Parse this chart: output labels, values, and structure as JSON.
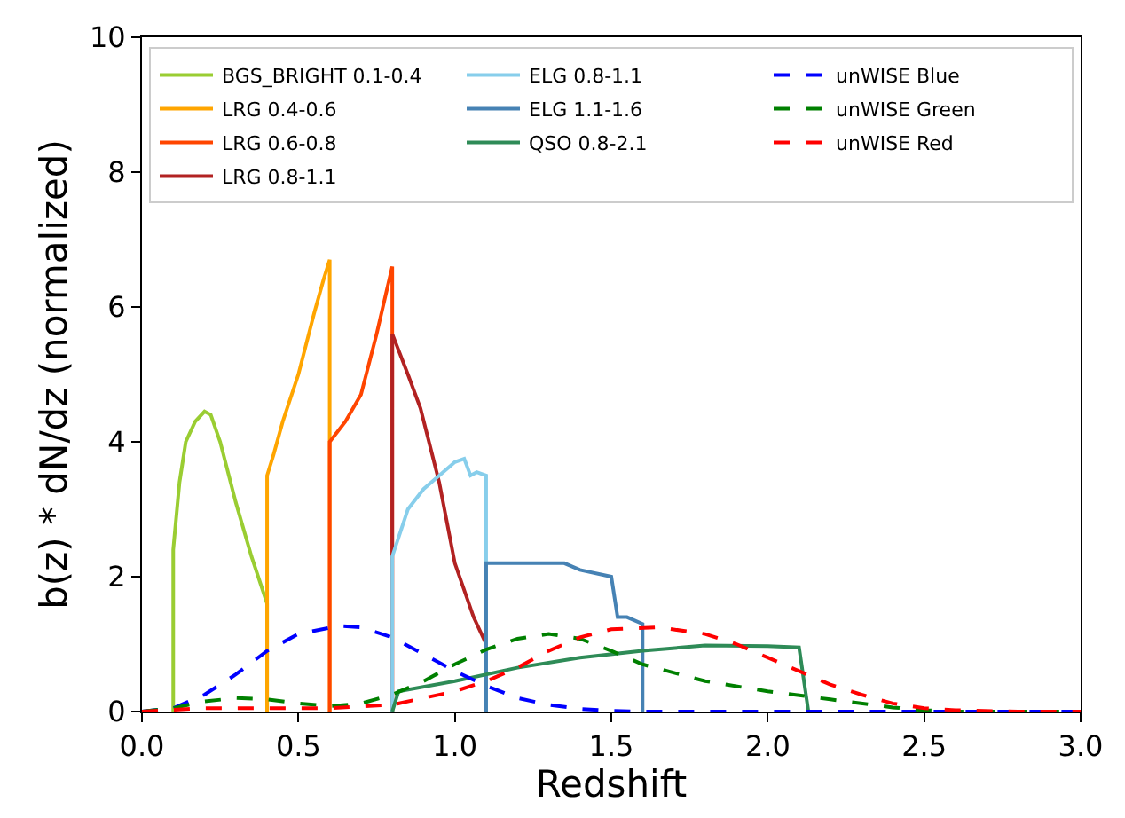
{
  "chart_data": {
    "type": "line",
    "xlabel": "Redshift",
    "ylabel": "b(z) * dN/dz (normalized)",
    "xlim": [
      0,
      3
    ],
    "ylim": [
      0,
      10
    ],
    "xticks": [
      {
        "value": 0,
        "label": "0.0"
      },
      {
        "value": 0.5,
        "label": "0.5"
      },
      {
        "value": 1,
        "label": "1.0"
      },
      {
        "value": 1.5,
        "label": "1.5"
      },
      {
        "value": 2,
        "label": "2.0"
      },
      {
        "value": 2.5,
        "label": "2.5"
      },
      {
        "value": 3,
        "label": "3.0"
      }
    ],
    "yticks": [
      0,
      2,
      4,
      6,
      8,
      10
    ],
    "legend": "top",
    "marker": "none",
    "series": [
      {
        "name": "BGS_BRIGHT 0.1-0.4",
        "color": "#9acd32",
        "line_style": "solid",
        "x": [
          0.1,
          0.1,
          0.12,
          0.14,
          0.17,
          0.2,
          0.22,
          0.25,
          0.3,
          0.35,
          0.4,
          0.4
        ],
        "values": [
          0,
          2.4,
          3.4,
          4.0,
          4.3,
          4.45,
          4.4,
          4.0,
          3.1,
          2.3,
          1.6,
          0
        ]
      },
      {
        "name": "LRG 0.4-0.6",
        "color": "#ffa500",
        "line_style": "solid",
        "x": [
          0.4,
          0.4,
          0.42,
          0.45,
          0.5,
          0.55,
          0.58,
          0.6,
          0.6
        ],
        "values": [
          0,
          3.5,
          3.8,
          4.3,
          5.0,
          5.9,
          6.4,
          6.7,
          0
        ]
      },
      {
        "name": "LRG 0.6-0.8",
        "color": "#ff4500",
        "line_style": "solid",
        "x": [
          0.6,
          0.6,
          0.65,
          0.7,
          0.75,
          0.78,
          0.8,
          0.8
        ],
        "values": [
          0,
          4.0,
          4.3,
          4.7,
          5.6,
          6.2,
          6.6,
          0
        ]
      },
      {
        "name": "LRG 0.8-1.1",
        "color": "#b22222",
        "line_style": "solid",
        "x": [
          0.8,
          0.8,
          0.85,
          0.89,
          0.95,
          1.0,
          1.06,
          1.1
        ],
        "values": [
          0,
          5.6,
          5.0,
          4.5,
          3.4,
          2.2,
          1.4,
          1.0
        ]
      },
      {
        "name": "ELG 0.8-1.1",
        "color": "#87ceeb",
        "line_style": "solid",
        "x": [
          0.8,
          0.8,
          0.85,
          0.9,
          0.95,
          1.0,
          1.03,
          1.05,
          1.07,
          1.1,
          1.1
        ],
        "values": [
          0,
          2.3,
          3.0,
          3.3,
          3.5,
          3.7,
          3.75,
          3.5,
          3.55,
          3.5,
          0
        ]
      },
      {
        "name": "ELG 1.1-1.6",
        "color": "#4682b4",
        "line_style": "solid",
        "x": [
          1.1,
          1.1,
          1.2,
          1.3,
          1.35,
          1.4,
          1.5,
          1.52,
          1.55,
          1.6,
          1.6
        ],
        "values": [
          0,
          2.2,
          2.2,
          2.2,
          2.2,
          2.1,
          2.0,
          1.4,
          1.4,
          1.3,
          0
        ]
      },
      {
        "name": "QSO 0.8-2.1",
        "color": "#2e8b57",
        "line_style": "solid",
        "x": [
          0.8,
          0.82,
          1.0,
          1.2,
          1.4,
          1.6,
          1.8,
          2.0,
          2.1,
          2.13
        ],
        "values": [
          0,
          0.3,
          0.45,
          0.65,
          0.8,
          0.9,
          0.98,
          0.97,
          0.95,
          0
        ]
      },
      {
        "name": "unWISE Blue",
        "color": "#0000ff",
        "line_style": "dashed",
        "x": [
          0,
          0.1,
          0.2,
          0.3,
          0.4,
          0.5,
          0.63,
          0.7,
          0.8,
          0.9,
          1.0,
          1.1,
          1.2,
          1.3,
          1.4,
          1.5,
          1.6,
          3.0
        ],
        "values": [
          0,
          0.05,
          0.25,
          0.55,
          0.9,
          1.15,
          1.27,
          1.25,
          1.1,
          0.85,
          0.6,
          0.38,
          0.2,
          0.1,
          0.04,
          0.01,
          0,
          0
        ]
      },
      {
        "name": "unWISE Green",
        "color": "#008000",
        "line_style": "dashed",
        "x": [
          0,
          0.1,
          0.2,
          0.3,
          0.4,
          0.5,
          0.6,
          0.7,
          0.8,
          0.9,
          1.0,
          1.1,
          1.2,
          1.3,
          1.4,
          1.5,
          1.6,
          1.8,
          2.0,
          2.2,
          2.4,
          2.5,
          2.6,
          3.0
        ],
        "values": [
          0,
          0.05,
          0.15,
          0.2,
          0.18,
          0.12,
          0.08,
          0.12,
          0.25,
          0.45,
          0.7,
          0.92,
          1.08,
          1.15,
          1.08,
          0.9,
          0.7,
          0.45,
          0.3,
          0.18,
          0.06,
          0.02,
          0,
          0
        ]
      },
      {
        "name": "unWISE Red",
        "color": "#ff0000",
        "line_style": "dashed",
        "x": [
          0,
          0.2,
          0.4,
          0.6,
          0.8,
          0.9,
          1.0,
          1.1,
          1.2,
          1.3,
          1.4,
          1.5,
          1.65,
          1.8,
          1.9,
          2.0,
          2.1,
          2.2,
          2.3,
          2.4,
          2.5,
          2.6,
          2.8,
          3.0
        ],
        "values": [
          0,
          0.05,
          0.05,
          0.05,
          0.1,
          0.2,
          0.3,
          0.45,
          0.65,
          0.9,
          1.1,
          1.22,
          1.25,
          1.15,
          1.0,
          0.8,
          0.6,
          0.4,
          0.25,
          0.12,
          0.05,
          0.02,
          0,
          0
        ]
      }
    ]
  }
}
